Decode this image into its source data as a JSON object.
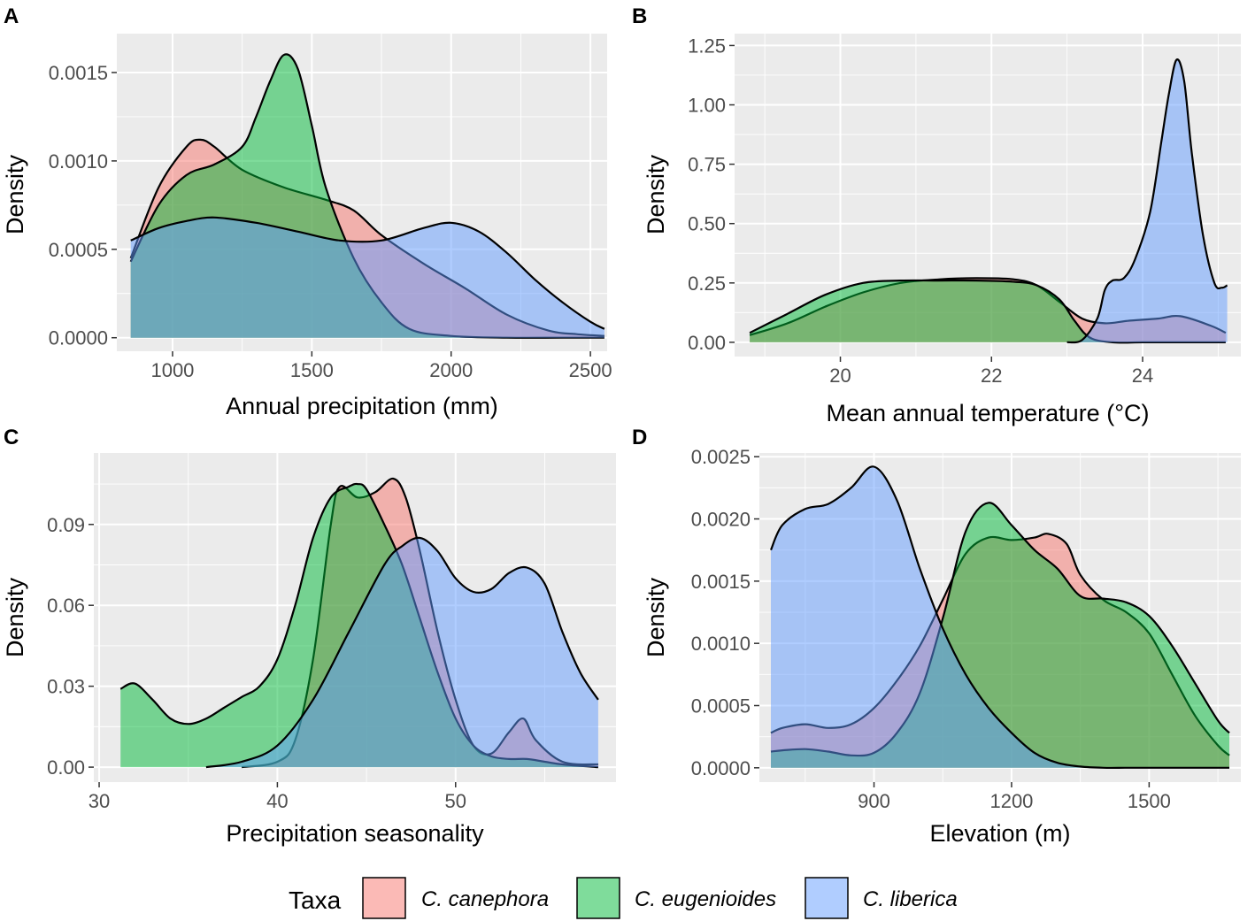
{
  "chart_data": [
    {
      "panel": "A",
      "type": "area",
      "xlabel": "Annual precipitation (mm)",
      "ylabel": "Density",
      "xlim": [
        800,
        2560
      ],
      "ylim": [
        -7.65e-05,
        0.00172
      ],
      "xticks": [
        1000,
        1500,
        2000,
        2500
      ],
      "xtick_labels": [
        "1000",
        "1500",
        "2000",
        "2500"
      ],
      "yticks": [
        0,
        0.0005,
        0.001,
        0.0015
      ],
      "ytick_labels": [
        "0.0000",
        "0.0005",
        "0.0010",
        "0.0015"
      ],
      "series": [
        {
          "name": "C. canephora",
          "x": [
            850,
            950,
            1050,
            1100,
            1150,
            1250,
            1400,
            1550,
            1650,
            1750,
            1900,
            2050,
            2200,
            2350,
            2450,
            2550
          ],
          "y": [
            0.00045,
            0.00085,
            0.00108,
            0.00112,
            0.00108,
            0.00095,
            0.00085,
            0.00078,
            0.00072,
            0.00058,
            0.00042,
            0.00028,
            0.00013,
            4e-05,
            2e-05,
            1e-05
          ]
        },
        {
          "name": "C. eugenioides",
          "x": [
            850,
            950,
            1050,
            1150,
            1250,
            1300,
            1350,
            1400,
            1450,
            1500,
            1550,
            1650,
            1750,
            1850,
            2000,
            2200,
            2400,
            2550
          ],
          "y": [
            0.00043,
            0.00075,
            0.00092,
            0.00098,
            0.00108,
            0.00125,
            0.00145,
            0.0016,
            0.00152,
            0.0012,
            0.00085,
            0.00045,
            0.0002,
            5e-05,
            1e-05,
            0,
            0,
            0
          ]
        },
        {
          "name": "C. liberica",
          "x": [
            850,
            950,
            1050,
            1150,
            1300,
            1450,
            1600,
            1750,
            1900,
            2000,
            2100,
            2200,
            2300,
            2400,
            2500,
            2550
          ],
          "y": [
            0.00055,
            0.00062,
            0.00066,
            0.00068,
            0.00065,
            0.0006,
            0.00055,
            0.00055,
            0.00062,
            0.00065,
            0.0006,
            0.00048,
            0.00033,
            0.0002,
            9e-05,
            5e-05
          ]
        }
      ]
    },
    {
      "panel": "B",
      "type": "area",
      "xlabel": "Mean annual temperature (°C)",
      "ylabel": "Density",
      "xlim": [
        18.6,
        25.3
      ],
      "ylim": [
        -0.06,
        1.3
      ],
      "xticks": [
        20,
        22,
        24
      ],
      "xtick_labels": [
        "20",
        "22",
        "24"
      ],
      "yticks": [
        0,
        0.25,
        0.5,
        0.75,
        1.0,
        1.25
      ],
      "ytick_labels": [
        "0.00",
        "0.25",
        "0.50",
        "0.75",
        "1.00",
        "1.25"
      ],
      "series": [
        {
          "name": "C. canephora",
          "x": [
            18.8,
            19.3,
            19.8,
            20.3,
            20.8,
            21.3,
            21.8,
            22.3,
            22.6,
            22.9,
            23.2,
            23.5,
            23.8,
            24.2,
            24.5,
            24.9,
            25.1
          ],
          "y": [
            0.03,
            0.08,
            0.15,
            0.21,
            0.25,
            0.265,
            0.27,
            0.265,
            0.24,
            0.17,
            0.1,
            0.08,
            0.09,
            0.1,
            0.11,
            0.07,
            0.04
          ]
        },
        {
          "name": "C. eugenioides",
          "x": [
            18.8,
            19.3,
            19.8,
            20.3,
            20.8,
            21.3,
            21.8,
            22.3,
            22.6,
            22.9,
            23.1,
            23.3,
            23.6,
            24.0,
            24.5,
            25.1
          ],
          "y": [
            0.04,
            0.12,
            0.2,
            0.25,
            0.26,
            0.26,
            0.26,
            0.255,
            0.24,
            0.18,
            0.09,
            0.02,
            0,
            0,
            0,
            0
          ]
        },
        {
          "name": "C. liberica",
          "x": [
            23.0,
            23.2,
            23.4,
            23.5,
            23.6,
            23.75,
            23.9,
            24.1,
            24.25,
            24.35,
            24.45,
            24.55,
            24.65,
            24.8,
            24.95,
            25.05,
            25.12
          ],
          "y": [
            0,
            0.01,
            0.1,
            0.22,
            0.26,
            0.27,
            0.35,
            0.55,
            0.85,
            1.05,
            1.19,
            1.1,
            0.8,
            0.45,
            0.25,
            0.23,
            0.24
          ]
        }
      ]
    },
    {
      "panel": "C",
      "type": "area",
      "xlabel": "Precipitation seasonality",
      "ylabel": "Density",
      "xlim": [
        29.7,
        59.0
      ],
      "ylim": [
        -0.00555,
        0.1165
      ],
      "xticks": [
        30,
        40,
        50
      ],
      "xtick_labels": [
        "30",
        "40",
        "50"
      ],
      "yticks": [
        0,
        0.03,
        0.06,
        0.09
      ],
      "ytick_labels": [
        "0.00",
        "0.03",
        "0.06",
        "0.09"
      ],
      "series": [
        {
          "name": "C. canephora",
          "x": [
            38,
            40,
            41,
            42,
            43,
            43.5,
            44.5,
            45.5,
            46.5,
            47.2,
            48,
            49,
            50,
            51,
            52,
            53,
            53.8,
            54.5,
            56,
            58
          ],
          "y": [
            0,
            0.002,
            0.01,
            0.04,
            0.09,
            0.104,
            0.1,
            0.102,
            0.107,
            0.1,
            0.08,
            0.05,
            0.025,
            0.008,
            0.005,
            0.013,
            0.018,
            0.01,
            0.002,
            0.001
          ]
        },
        {
          "name": "C. eugenioides",
          "x": [
            31.2,
            32,
            33,
            34,
            35,
            36,
            37,
            38,
            39,
            40,
            41,
            42,
            43,
            44,
            44.5,
            45,
            46,
            47,
            48,
            49,
            50,
            51,
            52,
            53,
            54,
            55,
            56,
            58
          ],
          "y": [
            0.029,
            0.031,
            0.025,
            0.018,
            0.016,
            0.018,
            0.022,
            0.026,
            0.03,
            0.04,
            0.06,
            0.085,
            0.1,
            0.104,
            0.105,
            0.103,
            0.09,
            0.075,
            0.055,
            0.035,
            0.018,
            0.008,
            0.004,
            0.003,
            0.003,
            0.002,
            0.001,
            0
          ]
        },
        {
          "name": "C. liberica",
          "x": [
            36,
            38,
            40,
            42,
            44,
            46,
            47,
            48,
            49,
            50,
            51,
            52,
            53,
            54,
            55,
            56,
            57,
            58
          ],
          "y": [
            0,
            0.002,
            0.008,
            0.025,
            0.05,
            0.075,
            0.082,
            0.085,
            0.08,
            0.07,
            0.065,
            0.066,
            0.072,
            0.074,
            0.068,
            0.05,
            0.035,
            0.025
          ]
        }
      ]
    },
    {
      "panel": "D",
      "type": "area",
      "xlabel": "Elevation (m)",
      "ylabel": "Density",
      "xlim": [
        650,
        1700
      ],
      "ylim": [
        -0.000115,
        0.00253
      ],
      "xticks": [
        900,
        1200,
        1500
      ],
      "xtick_labels": [
        "900",
        "1200",
        "1500"
      ],
      "yticks": [
        0,
        0.0005,
        0.001,
        0.0015,
        0.002,
        0.0025
      ],
      "ytick_labels": [
        "0.0000",
        "0.0005",
        "0.0010",
        "0.0015",
        "0.0020",
        "0.0025"
      ],
      "series": [
        {
          "name": "C. canephora",
          "x": [
            675,
            700,
            750,
            800,
            850,
            900,
            950,
            1000,
            1050,
            1100,
            1150,
            1200,
            1250,
            1280,
            1320,
            1350,
            1400,
            1450,
            1500,
            1550,
            1600,
            1650,
            1675
          ],
          "y": [
            0.00028,
            0.00032,
            0.00035,
            0.00032,
            0.00035,
            0.00048,
            0.0007,
            0.00098,
            0.00135,
            0.00172,
            0.00185,
            0.00183,
            0.00185,
            0.00188,
            0.0018,
            0.00155,
            0.00135,
            0.00125,
            0.00108,
            0.00075,
            0.00042,
            0.00018,
            0.0001
          ]
        },
        {
          "name": "C. eugenioides",
          "x": [
            675,
            700,
            750,
            800,
            850,
            900,
            950,
            1000,
            1050,
            1100,
            1150,
            1200,
            1250,
            1300,
            1350,
            1400,
            1450,
            1500,
            1550,
            1600,
            1650,
            1675
          ],
          "y": [
            0.00013,
            0.00014,
            0.00015,
            0.00013,
            0.0001,
            0.00012,
            0.00028,
            0.0006,
            0.0012,
            0.0019,
            0.00213,
            0.00195,
            0.00175,
            0.0016,
            0.00138,
            0.00136,
            0.00133,
            0.00122,
            0.00098,
            0.00068,
            0.00038,
            0.00028
          ]
        },
        {
          "name": "C. liberica",
          "x": [
            675,
            700,
            750,
            800,
            850,
            900,
            950,
            1000,
            1050,
            1100,
            1150,
            1200,
            1250,
            1300,
            1350,
            1400,
            1450,
            1500,
            1550,
            1600,
            1675
          ],
          "y": [
            0.00175,
            0.00195,
            0.00208,
            0.00212,
            0.00225,
            0.00242,
            0.00215,
            0.0016,
            0.00112,
            0.00075,
            0.00048,
            0.00028,
            0.00012,
            4e-05,
            1e-05,
            0,
            0,
            0,
            0,
            0,
            0
          ]
        }
      ]
    }
  ],
  "legend": {
    "title": "Taxa",
    "items": [
      {
        "label": "C. canephora",
        "color": "#F8766D"
      },
      {
        "label": "C. eugenioides",
        "color": "#00BA38"
      },
      {
        "label": "C. liberica",
        "color": "#619CFF"
      }
    ]
  },
  "colors": {
    "panel_background": "#EBEBEB",
    "grid_major": "#FFFFFF",
    "outline": "#000000",
    "C. canephora": "#F8766D",
    "C. eugenioides": "#00BA38",
    "C. liberica": "#619CFF"
  }
}
